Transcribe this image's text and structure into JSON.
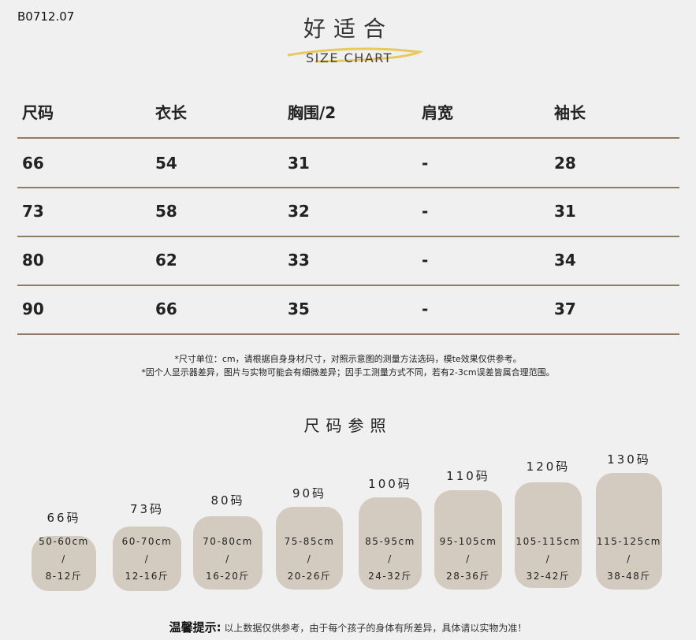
{
  "product_code": "B0712.07",
  "logo": {
    "cn": "好适合",
    "en": "SIZE CHART",
    "accent": "#e8c860"
  },
  "table": {
    "headers": [
      "尺码",
      "衣长",
      "胸围/2",
      "肩宽",
      "袖长"
    ],
    "rows": [
      [
        "66",
        "54",
        "31",
        "-",
        "28"
      ],
      [
        "73",
        "58",
        "32",
        "-",
        "31"
      ],
      [
        "80",
        "62",
        "33",
        "-",
        "34"
      ],
      [
        "90",
        "66",
        "35",
        "-",
        "37"
      ]
    ]
  },
  "notes": [
    "*尺寸单位：cm，请根据自身身材尺寸，对照示意图的测量方法选码，模te效果仅供参考。",
    "*因个人显示器差异，图片与实物可能会有细微差异；因手工测量方式不同，若有2-3cm误差皆属合理范围。"
  ],
  "size_reference": {
    "title": "尺码参照",
    "sizes": [
      {
        "label": "66码",
        "height": "50-60cm",
        "sep": "/",
        "weight": "8-12斤"
      },
      {
        "label": "73码",
        "height": "60-70cm",
        "sep": "/",
        "weight": "12-16斤"
      },
      {
        "label": "80码",
        "height": "70-80cm",
        "sep": "/",
        "weight": "16-20斤"
      },
      {
        "label": "90码",
        "height": "75-85cm",
        "sep": "/",
        "weight": "20-26斤"
      },
      {
        "label": "100码",
        "height": "85-95cm",
        "sep": "/",
        "weight": "24-32斤"
      },
      {
        "label": "110码",
        "height": "95-105cm",
        "sep": "/",
        "weight": "28-36斤"
      },
      {
        "label": "120码",
        "height": "105-115cm",
        "sep": "/",
        "weight": "32-42斤"
      },
      {
        "label": "130码",
        "height": "115-125cm",
        "sep": "/",
        "weight": "38-48斤"
      }
    ]
  },
  "tip": {
    "label": "温馨提示:",
    "text": "以上数据仅供参考，由于每个孩子的身体有所差异，具体请以实物为准！"
  },
  "colors": {
    "background": "#f0f0f0",
    "divider": "#8f7b66",
    "blob": "#d3cbc0"
  }
}
